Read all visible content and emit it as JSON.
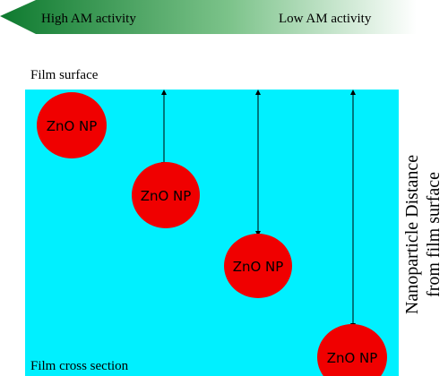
{
  "gradient_arrow": {
    "left_label": "High AM activity",
    "right_label": "Low AM activity",
    "color_dark": "#0e7a2f",
    "color_light": "#ffffff"
  },
  "film": {
    "surface_label": "Film surface",
    "cross_section_label": "Film cross section",
    "fill_color": "#00f0ff"
  },
  "nanoparticles": {
    "label": "ZnO NP",
    "color": "#f00000",
    "items": [
      {
        "id": 1,
        "distance_rank": 0
      },
      {
        "id": 2,
        "distance_rank": 1
      },
      {
        "id": 3,
        "distance_rank": 2
      },
      {
        "id": 4,
        "distance_rank": 3
      }
    ]
  },
  "side_label": {
    "line1": "Nanoparticle Distance",
    "line2": "from  film surface"
  }
}
